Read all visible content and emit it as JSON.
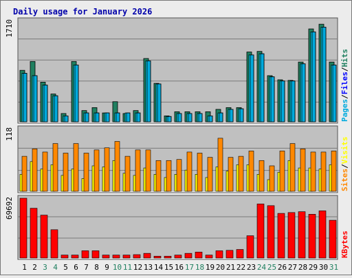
{
  "title": "Daily usage for January 2026",
  "colors": {
    "hits": "#208060",
    "files": "#00ddff",
    "pages": "#00aadd",
    "visits": "#ff8800",
    "sites": "#ffff00",
    "kbytes": "#ff0000",
    "panel_bg": "#c0c0c0",
    "page_bg": "#ececec",
    "title": "#0000aa",
    "weekend_day": "#208060",
    "weekday": "#000000"
  },
  "chart_data": [
    {
      "type": "bar",
      "panel": "hits-files-pages",
      "ymax_label": "1710",
      "ymax": 1710,
      "legend": [
        {
          "label": "Pages",
          "color": "#00aadd"
        },
        {
          "label": "/",
          "color": "#000000"
        },
        {
          "label": "Files",
          "color": "#0000ff"
        },
        {
          "label": "/",
          "color": "#000000"
        },
        {
          "label": "Hits",
          "color": "#208060"
        }
      ],
      "categories": [
        "1",
        "2",
        "3",
        "4",
        "5",
        "6",
        "7",
        "8",
        "9",
        "10",
        "11",
        "12",
        "13",
        "14",
        "15",
        "16",
        "17",
        "18",
        "19",
        "20",
        "21",
        "22",
        "23",
        "24",
        "25",
        "26",
        "27",
        "28",
        "29",
        "30",
        "31"
      ],
      "series": [
        {
          "name": "Hits",
          "values": [
            870,
            1020,
            670,
            470,
            140,
            1020,
            190,
            240,
            150,
            340,
            140,
            190,
            1070,
            650,
            100,
            170,
            170,
            170,
            170,
            210,
            240,
            240,
            1180,
            1190,
            780,
            710,
            700,
            1010,
            1570,
            1650,
            1010
          ]
        },
        {
          "name": "Files",
          "values": [
            820,
            780,
            620,
            440,
            100,
            960,
            150,
            150,
            150,
            150,
            150,
            150,
            1030,
            640,
            90,
            140,
            140,
            140,
            100,
            150,
            210,
            220,
            1130,
            1150,
            760,
            690,
            690,
            980,
            1520,
            1600,
            960
          ]
        },
        {
          "name": "Pages",
          "values": [
            820,
            780,
            620,
            440,
            100,
            960,
            150,
            150,
            150,
            150,
            150,
            150,
            1030,
            640,
            90,
            140,
            140,
            140,
            100,
            150,
            210,
            220,
            1130,
            1150,
            760,
            690,
            690,
            980,
            1520,
            1600,
            960
          ]
        }
      ]
    },
    {
      "type": "bar",
      "panel": "visits-sites",
      "ymax_label": "118",
      "ymax": 118,
      "legend": [
        {
          "label": "Sites",
          "color": "#ff8800"
        },
        {
          "label": "/",
          "color": "#000000"
        },
        {
          "label": "Visits",
          "color": "#ffff00"
        }
      ],
      "categories": [
        "1",
        "2",
        "3",
        "4",
        "5",
        "6",
        "7",
        "8",
        "9",
        "10",
        "11",
        "12",
        "13",
        "14",
        "15",
        "16",
        "17",
        "18",
        "19",
        "20",
        "21",
        "22",
        "23",
        "24",
        "25",
        "26",
        "27",
        "28",
        "29",
        "30",
        "31"
      ],
      "series": [
        {
          "name": "Visits",
          "values": [
            32,
            56,
            42,
            50,
            30,
            42,
            24,
            48,
            46,
            58,
            34,
            30,
            44,
            32,
            26,
            32,
            40,
            32,
            26,
            46,
            38,
            50,
            50,
            32,
            22,
            36,
            58,
            44,
            44,
            42,
            50
          ]
        },
        {
          "name": "Sites",
          "values": [
            66,
            80,
            74,
            90,
            72,
            90,
            72,
            78,
            82,
            94,
            66,
            78,
            78,
            58,
            58,
            60,
            74,
            72,
            64,
            100,
            64,
            66,
            76,
            58,
            48,
            76,
            90,
            80,
            74,
            74,
            76
          ]
        }
      ]
    },
    {
      "type": "bar",
      "panel": "kbytes",
      "ymax_label": "69692",
      "ymax": 69692,
      "legend": [
        {
          "label": "KBytes",
          "color": "#ff0000"
        }
      ],
      "categories": [
        "1",
        "2",
        "3",
        "4",
        "5",
        "6",
        "7",
        "8",
        "9",
        "10",
        "11",
        "12",
        "13",
        "14",
        "15",
        "16",
        "17",
        "18",
        "19",
        "20",
        "21",
        "22",
        "23",
        "24",
        "25",
        "26",
        "27",
        "28",
        "29",
        "30",
        "31"
      ],
      "weekend_days": [
        3,
        4,
        10,
        11,
        17,
        18,
        24,
        25,
        31
      ],
      "series": [
        {
          "name": "KBytes",
          "values": [
            69692,
            58000,
            50000,
            33000,
            3500,
            3500,
            8500,
            8500,
            3500,
            3500,
            3500,
            4000,
            5500,
            2200,
            2200,
            3500,
            5500,
            7000,
            3500,
            8500,
            9000,
            10000,
            26000,
            63000,
            61000,
            52000,
            53000,
            54000,
            51000,
            55000,
            44000
          ]
        }
      ]
    }
  ]
}
